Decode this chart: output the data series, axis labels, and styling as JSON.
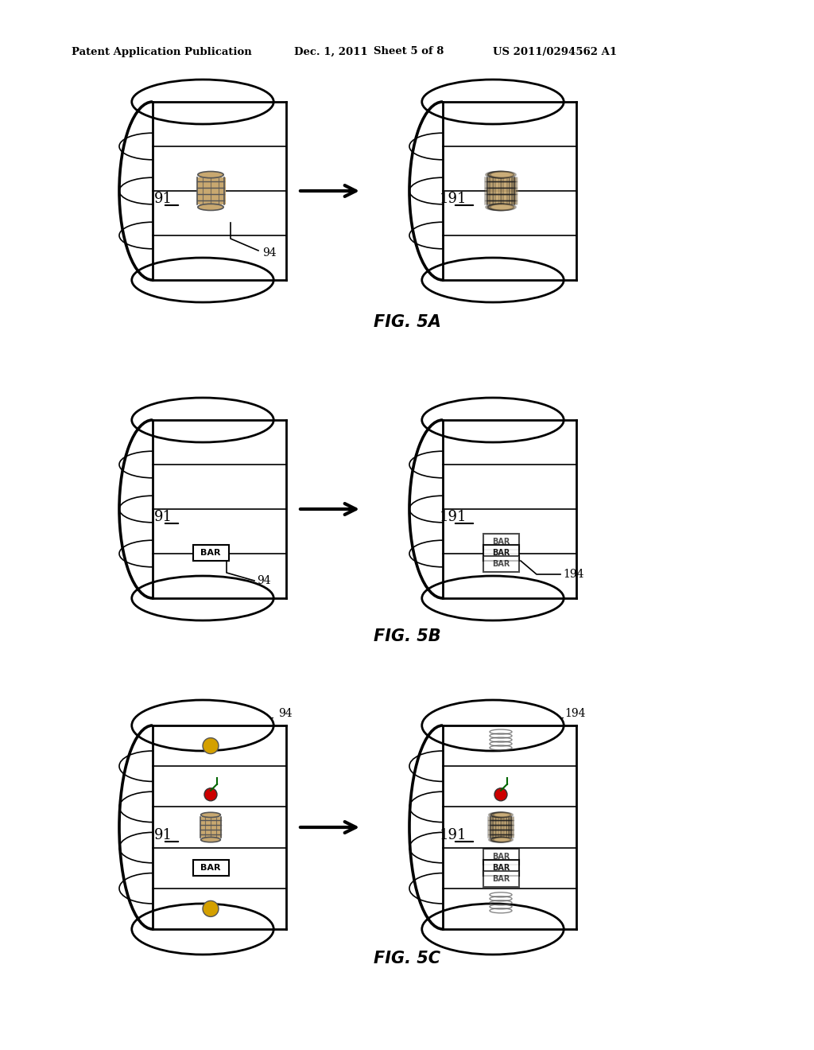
{
  "bg_color": "#ffffff",
  "header_text": "Patent Application Publication",
  "header_date": "Dec. 1, 2011",
  "header_sheet": "Sheet 5 of 8",
  "header_patent": "US 2011/0294562 A1",
  "fig5a_label": "FIG. 5A",
  "fig5b_label": "FIG. 5B",
  "fig5c_label": "FIG. 5C",
  "label_91": "91",
  "label_191": "191",
  "label_94a": "94",
  "label_94b": "94",
  "label_94c": "94",
  "label_194b": "194",
  "label_194c": "194"
}
